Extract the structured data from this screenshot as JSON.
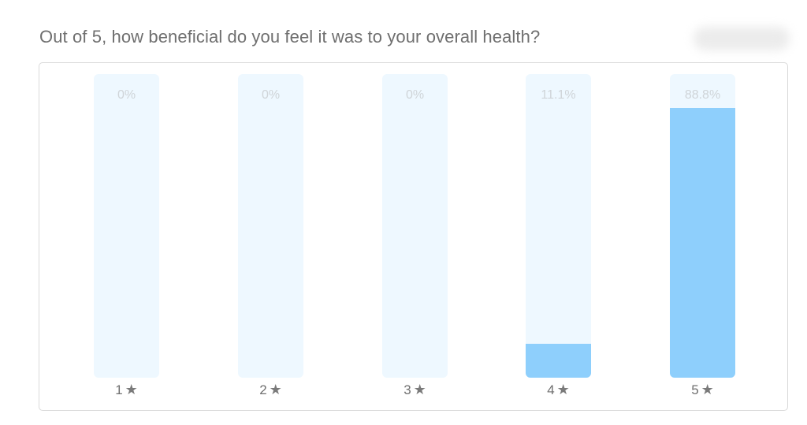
{
  "question": "Out of 5, how beneficial do you feel it was to your overall health?",
  "chart_data": {
    "type": "bar",
    "categories": [
      "1",
      "2",
      "3",
      "4",
      "5"
    ],
    "values": [
      0,
      0,
      0,
      11.1,
      88.8
    ],
    "value_labels": [
      "0%",
      "0%",
      "0%",
      "11.1%",
      "88.8%"
    ],
    "unit": "%",
    "ylim": [
      0,
      100
    ],
    "category_icon": "star-icon",
    "grid": false,
    "colors": {
      "fill": "#8ecffc",
      "track": "#eef8ff",
      "label": "#cfd4d8"
    }
  }
}
